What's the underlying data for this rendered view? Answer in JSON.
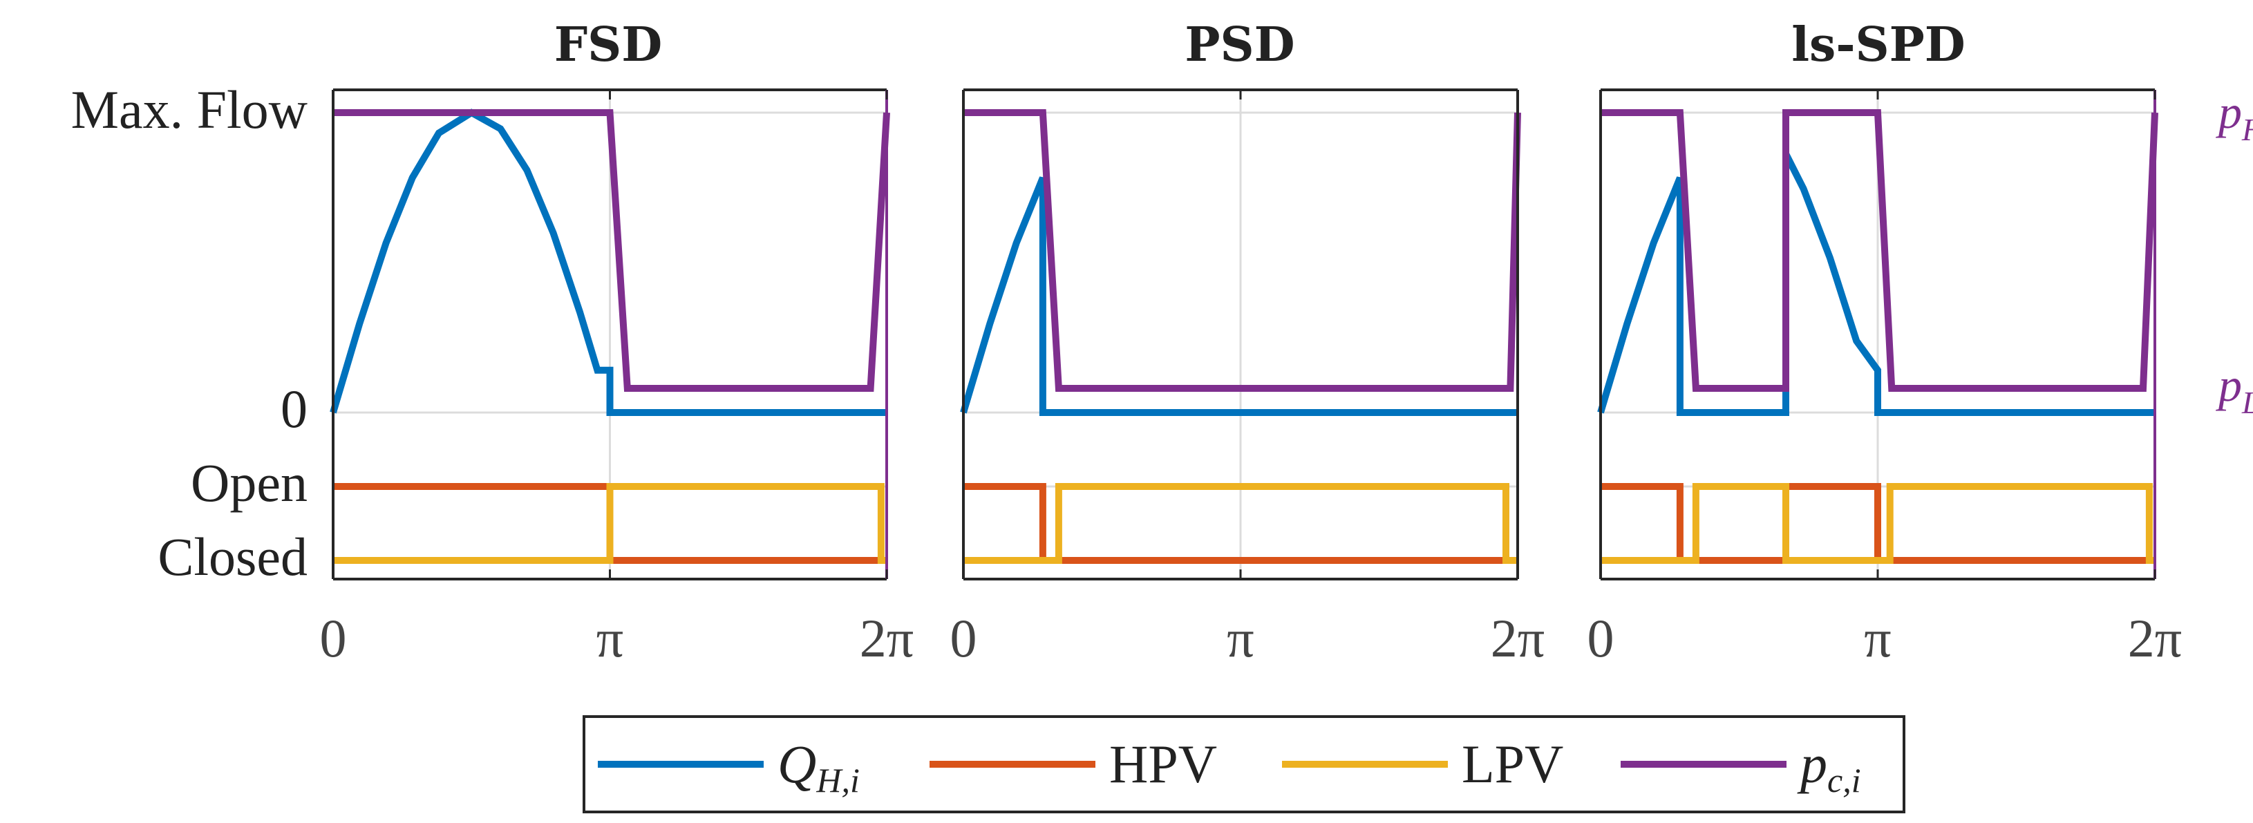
{
  "chart_data": [
    {
      "type": "line",
      "title": "FSD",
      "xlabel": "",
      "ylabel": "",
      "xlim": [
        0,
        6.2832
      ],
      "xticks": [
        "0",
        "π",
        "2π"
      ],
      "yticks_flow": [
        "Max. Flow",
        "0"
      ],
      "yticks_valve": [
        "Open",
        "Closed"
      ],
      "series": [
        {
          "name": "Q_H,i",
          "x": [
            0,
            0.3,
            0.6,
            0.9,
            1.2,
            1.5708,
            1.9,
            2.2,
            2.5,
            2.8,
            3.0,
            3.1416,
            3.1416,
            6.2832
          ],
          "y": [
            0,
            0.296,
            0.565,
            0.783,
            0.932,
            1.0,
            0.946,
            0.808,
            0.598,
            0.335,
            0.141,
            0.141,
            0,
            0
          ]
        },
        {
          "name": "HPV",
          "x": [
            0,
            3.1416,
            3.1416,
            6.2832
          ],
          "y": [
            1,
            1,
            0,
            0
          ]
        },
        {
          "name": "LPV",
          "x": [
            0,
            3.1416,
            3.1416,
            3.2,
            3.2,
            6.22,
            6.22,
            6.2832
          ],
          "y": [
            0,
            0,
            1,
            1,
            1,
            1,
            0,
            0
          ]
        },
        {
          "name": "p_c,i",
          "x": [
            0,
            3.1416,
            3.34,
            6.1,
            6.2832
          ],
          "y": [
            1,
            1,
            0,
            0,
            1
          ]
        }
      ]
    },
    {
      "type": "line",
      "title": "PSD",
      "xlabel": "",
      "ylabel": "",
      "xlim": [
        0,
        6.2832
      ],
      "xticks": [
        "0",
        "π",
        "2π"
      ],
      "series": [
        {
          "name": "Q_H,i",
          "x": [
            0,
            0.3,
            0.6,
            0.9,
            0.9,
            6.2832
          ],
          "y": [
            0,
            0.296,
            0.565,
            0.783,
            0,
            0
          ]
        },
        {
          "name": "HPV",
          "x": [
            0,
            0.9,
            0.9,
            6.2832
          ],
          "y": [
            1,
            1,
            0,
            0
          ]
        },
        {
          "name": "LPV",
          "x": [
            0,
            1.08,
            1.08,
            6.15,
            6.15,
            6.2832
          ],
          "y": [
            0,
            0,
            1,
            1,
            0,
            0
          ]
        },
        {
          "name": "p_c,i",
          "x": [
            0,
            0.9,
            1.08,
            6.2,
            6.2832
          ],
          "y": [
            1,
            1,
            0,
            0,
            1
          ]
        }
      ]
    },
    {
      "type": "line",
      "title": "ls-SPD",
      "xlabel": "",
      "ylabel": "",
      "xlim": [
        0,
        6.2832
      ],
      "xticks": [
        "0",
        "π",
        "2π"
      ],
      "series": [
        {
          "name": "Q_H,i",
          "x": [
            0,
            0.3,
            0.6,
            0.9,
            0.9,
            2.1,
            2.1,
            2.3,
            2.6,
            2.9,
            3.1416,
            3.1416,
            6.2832
          ],
          "y": [
            0,
            0.296,
            0.565,
            0.783,
            0,
            0,
            0.863,
            0.746,
            0.516,
            0.239,
            0.141,
            0,
            0
          ]
        },
        {
          "name": "HPV",
          "x": [
            0,
            0.9,
            0.9,
            2.1,
            2.1,
            3.1416,
            3.1416,
            6.2832
          ],
          "y": [
            1,
            1,
            0,
            0,
            1,
            1,
            0,
            0
          ]
        },
        {
          "name": "LPV",
          "x": [
            0,
            1.08,
            1.08,
            2.1,
            2.1,
            3.28,
            3.28,
            6.22,
            6.22,
            6.2832
          ],
          "y": [
            0,
            0,
            1,
            1,
            0,
            0,
            1,
            1,
            0,
            0
          ]
        },
        {
          "name": "p_c,i",
          "x": [
            0,
            0.9,
            1.08,
            2.1,
            2.1,
            3.1416,
            3.3,
            6.15,
            6.2832
          ],
          "y": [
            1,
            1,
            0,
            0,
            1,
            1,
            0,
            0,
            1
          ]
        }
      ]
    }
  ],
  "right_axis_labels": {
    "top": "p",
    "top_sub": "H",
    "bottom": "p",
    "bottom_sub": "L"
  },
  "legend": [
    {
      "name": "Q",
      "sub": "H,i",
      "color": "#0072BD"
    },
    {
      "name": "HPV",
      "sub": "",
      "color": "#D95319"
    },
    {
      "name": "LPV",
      "sub": "",
      "color": "#EDB120"
    },
    {
      "name": "p",
      "sub": "c,i",
      "color": "#7E2F8E"
    }
  ],
  "colors": {
    "Q_H,i": "#0072BD",
    "HPV": "#D95319",
    "LPV": "#EDB120",
    "p_c,i": "#7E2F8E",
    "grid": "#DCDCDC",
    "axis": "#262626"
  }
}
